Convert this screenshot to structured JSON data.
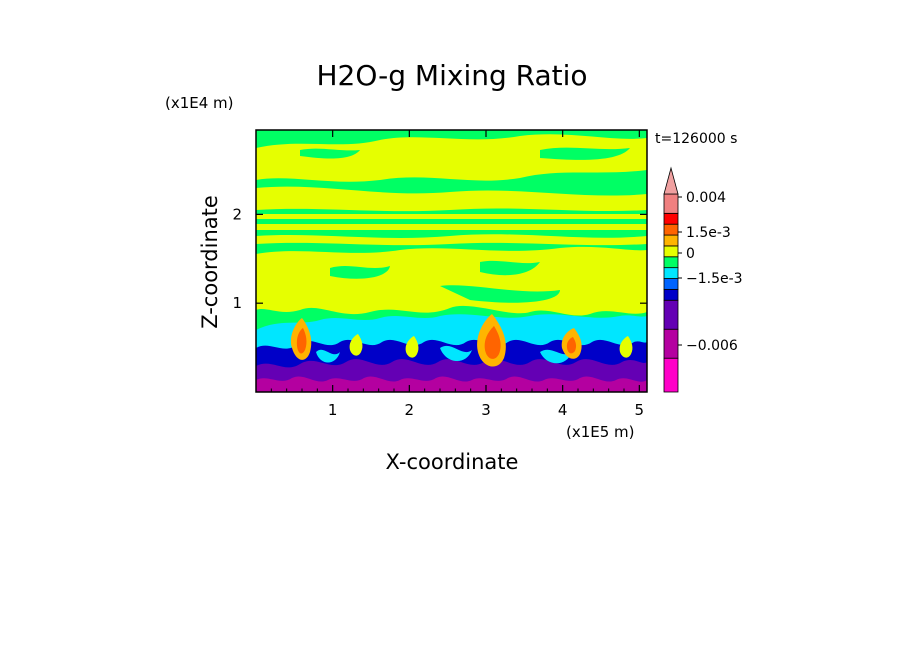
{
  "chart_data": {
    "type": "heatmap",
    "title": "H2O-g Mixing Ratio",
    "xlabel": "X-coordinate",
    "ylabel": "Z-coordinate",
    "x_unit": "(x1E5 m)",
    "y_unit": "(x1E4 m)",
    "time_label": "t=126000 s",
    "xlim": [
      0,
      5.1
    ],
    "ylim": [
      0,
      2.95
    ],
    "xticks": [
      1,
      2,
      3,
      4,
      5
    ],
    "yticks": [
      1,
      2
    ],
    "colorbar": {
      "colors": [
        "#ff00c8",
        "#b400a0",
        "#6400b4",
        "#0000c8",
        "#0064ff",
        "#00e6ff",
        "#00ff64",
        "#e6ff00",
        "#ffb400",
        "#ff6400",
        "#ff0000",
        "#f08080",
        "#f0a0a0"
      ],
      "labels": [
        {
          "text": "0.004",
          "level": 0.004
        },
        {
          "text": "1.5e-3",
          "level": 0.0015
        },
        {
          "text": "0",
          "level": 0
        },
        {
          "text": "−1.5e-3",
          "level": -0.0015
        },
        {
          "text": "−0.006",
          "level": -0.006
        }
      ]
    }
  }
}
